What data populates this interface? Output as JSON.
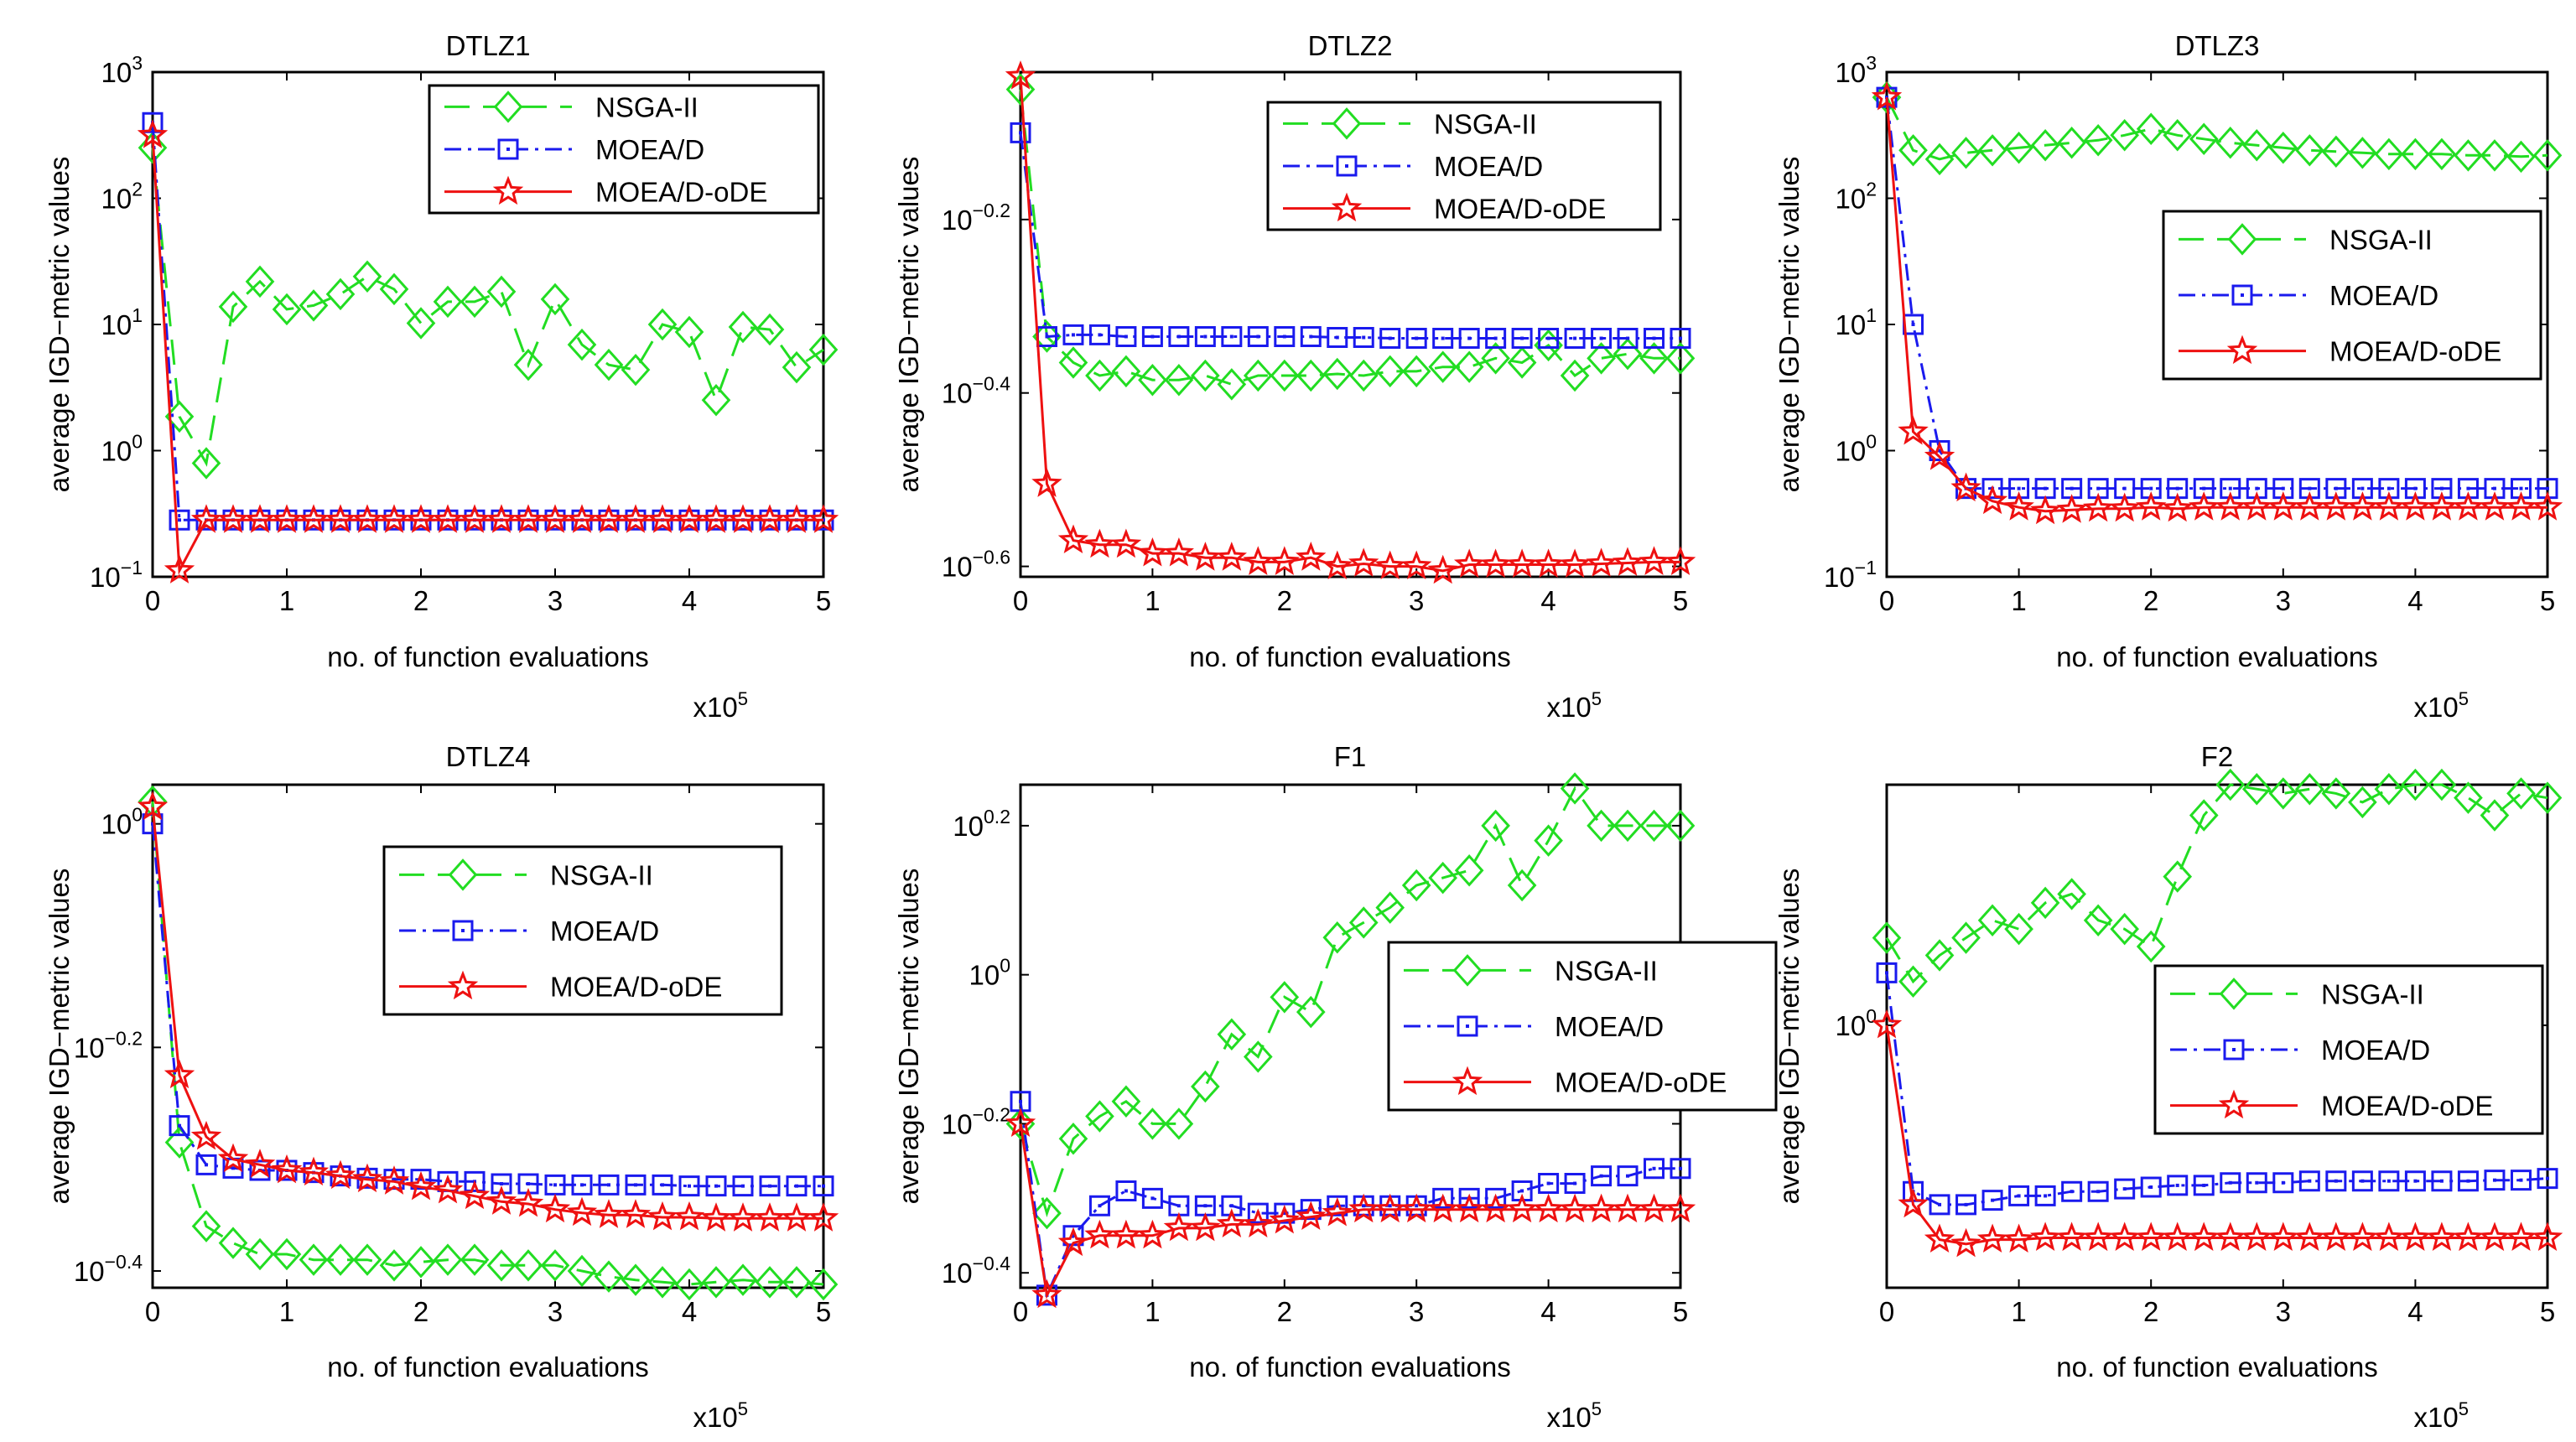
{
  "colors": {
    "nsga": "#22dd22",
    "moead": "#1a1aee",
    "moeaode": "#ee1111"
  },
  "series_names": [
    "NSGA-II",
    "MOEA/D",
    "MOEA/D-oDE"
  ],
  "chart_data": [
    {
      "type": "line",
      "title": "DTLZ1",
      "xlabel": "no. of function evaluations",
      "ylabel": "average IGD−metric values",
      "x_multiplier": "x10",
      "x_multiplier_exp": "5",
      "xlim": [
        0,
        5
      ],
      "xticks": [
        "0",
        "1",
        "2",
        "3",
        "4",
        "5"
      ],
      "yscale": "log",
      "ylim": [
        -1,
        3
      ],
      "yticks": [
        {
          "value": -1,
          "base": "10",
          "exp": "−1"
        },
        {
          "value": 0,
          "base": "10",
          "exp": "0"
        },
        {
          "value": 1,
          "base": "10",
          "exp": "1"
        },
        {
          "value": 2,
          "base": "10",
          "exp": "2"
        },
        {
          "value": 3,
          "base": "10",
          "exp": "3"
        }
      ],
      "legend": "top-right",
      "x": [
        0,
        0.2,
        0.4,
        0.6,
        0.8,
        1.0,
        1.2,
        1.4,
        1.6,
        1.8,
        2.0,
        2.2,
        2.4,
        2.6,
        2.8,
        3.0,
        3.2,
        3.4,
        3.6,
        3.8,
        4.0,
        4.2,
        4.4,
        4.6,
        4.8,
        5.0
      ],
      "series": [
        {
          "name": "NSGA-II",
          "values": [
            2.4,
            0.27,
            -0.1,
            1.14,
            1.34,
            1.12,
            1.15,
            1.24,
            1.38,
            1.28,
            1.01,
            1.18,
            1.18,
            1.26,
            0.68,
            1.2,
            0.84,
            0.68,
            0.64,
            1.0,
            0.94,
            0.4,
            0.98,
            0.96,
            0.66,
            0.8
          ]
        },
        {
          "name": "MOEA/D",
          "values": [
            2.6,
            -0.55,
            -0.55,
            -0.55,
            -0.55,
            -0.55,
            -0.55,
            -0.55,
            -0.55,
            -0.55,
            -0.55,
            -0.55,
            -0.55,
            -0.55,
            -0.55,
            -0.55,
            -0.55,
            -0.55,
            -0.55,
            -0.55,
            -0.55,
            -0.55,
            -0.55,
            -0.55,
            -0.55,
            -0.55
          ]
        },
        {
          "name": "MOEA/D-oDE",
          "values": [
            2.5,
            -0.95,
            -0.55,
            -0.55,
            -0.55,
            -0.55,
            -0.55,
            -0.55,
            -0.55,
            -0.55,
            -0.55,
            -0.55,
            -0.55,
            -0.55,
            -0.55,
            -0.55,
            -0.55,
            -0.55,
            -0.55,
            -0.55,
            -0.55,
            -0.55,
            -0.55,
            -0.55,
            -0.55,
            -0.55
          ]
        }
      ]
    },
    {
      "type": "line",
      "title": "DTLZ2",
      "xlabel": "no. of function evaluations",
      "ylabel": "average IGD−metric values",
      "x_multiplier": "x10",
      "x_multiplier_exp": "5",
      "xlim": [
        0,
        5
      ],
      "xticks": [
        "0",
        "1",
        "2",
        "3",
        "4",
        "5"
      ],
      "yscale": "log",
      "ylim": [
        -0.612,
        -0.03
      ],
      "yticks": [
        {
          "value": -0.2,
          "base": "10",
          "exp": "−0.2"
        },
        {
          "value": -0.4,
          "base": "10",
          "exp": "−0.4"
        },
        {
          "value": -0.6,
          "base": "10",
          "exp": "−0.6"
        }
      ],
      "legend": "top-right",
      "x": [
        0,
        0.2,
        0.4,
        0.6,
        0.8,
        1.0,
        1.2,
        1.4,
        1.6,
        1.8,
        2.0,
        2.2,
        2.4,
        2.6,
        2.8,
        3.0,
        3.2,
        3.4,
        3.6,
        3.8,
        4.0,
        4.2,
        4.4,
        4.6,
        4.8,
        5.0
      ],
      "series": [
        {
          "name": "NSGA-II",
          "values": [
            -0.05,
            -0.335,
            -0.365,
            -0.38,
            -0.375,
            -0.385,
            -0.385,
            -0.38,
            -0.39,
            -0.38,
            -0.38,
            -0.38,
            -0.378,
            -0.38,
            -0.375,
            -0.375,
            -0.37,
            -0.37,
            -0.36,
            -0.365,
            -0.345,
            -0.38,
            -0.36,
            -0.355,
            -0.36,
            -0.36
          ]
        },
        {
          "name": "MOEA/D",
          "values": [
            -0.1,
            -0.335,
            -0.333,
            -0.333,
            -0.335,
            -0.335,
            -0.335,
            -0.335,
            -0.335,
            -0.335,
            -0.335,
            -0.335,
            -0.336,
            -0.336,
            -0.337,
            -0.337,
            -0.337,
            -0.337,
            -0.337,
            -0.337,
            -0.337,
            -0.337,
            -0.337,
            -0.337,
            -0.337,
            -0.337
          ]
        },
        {
          "name": "MOEA/D-oDE",
          "values": [
            -0.035,
            -0.505,
            -0.57,
            -0.575,
            -0.575,
            -0.585,
            -0.585,
            -0.59,
            -0.59,
            -0.595,
            -0.595,
            -0.59,
            -0.6,
            -0.597,
            -0.6,
            -0.6,
            -0.605,
            -0.598,
            -0.598,
            -0.598,
            -0.598,
            -0.598,
            -0.597,
            -0.596,
            -0.595,
            -0.595
          ]
        }
      ]
    },
    {
      "type": "line",
      "title": "DTLZ3",
      "xlabel": "no. of function evaluations",
      "ylabel": "average IGD−metric values",
      "x_multiplier": "x10",
      "x_multiplier_exp": "5",
      "xlim": [
        0,
        5
      ],
      "xticks": [
        "0",
        "1",
        "2",
        "3",
        "4",
        "5"
      ],
      "yscale": "log",
      "ylim": [
        -1,
        3
      ],
      "yticks": [
        {
          "value": -1,
          "base": "10",
          "exp": "−1"
        },
        {
          "value": 0,
          "base": "10",
          "exp": "0"
        },
        {
          "value": 1,
          "base": "10",
          "exp": "1"
        },
        {
          "value": 2,
          "base": "10",
          "exp": "2"
        },
        {
          "value": 3,
          "base": "10",
          "exp": "3"
        }
      ],
      "legend": "right",
      "x": [
        0,
        0.2,
        0.4,
        0.6,
        0.8,
        1.0,
        1.2,
        1.4,
        1.6,
        1.8,
        2.0,
        2.2,
        2.4,
        2.6,
        2.8,
        3.0,
        3.2,
        3.4,
        3.6,
        3.8,
        4.0,
        4.2,
        4.4,
        4.6,
        4.8,
        5.0
      ],
      "series": [
        {
          "name": "NSGA-II",
          "values": [
            2.8,
            2.38,
            2.31,
            2.36,
            2.38,
            2.4,
            2.42,
            2.44,
            2.46,
            2.5,
            2.55,
            2.5,
            2.47,
            2.44,
            2.42,
            2.4,
            2.38,
            2.37,
            2.36,
            2.35,
            2.35,
            2.35,
            2.34,
            2.34,
            2.33,
            2.34
          ]
        },
        {
          "name": "MOEA/D",
          "values": [
            2.8,
            1.0,
            0.0,
            -0.3,
            -0.3,
            -0.3,
            -0.3,
            -0.3,
            -0.3,
            -0.3,
            -0.3,
            -0.3,
            -0.3,
            -0.3,
            -0.3,
            -0.3,
            -0.3,
            -0.3,
            -0.3,
            -0.3,
            -0.3,
            -0.3,
            -0.3,
            -0.3,
            -0.3,
            -0.3
          ]
        },
        {
          "name": "MOEA/D-oDE",
          "values": [
            2.8,
            0.15,
            -0.05,
            -0.3,
            -0.4,
            -0.45,
            -0.48,
            -0.47,
            -0.46,
            -0.46,
            -0.45,
            -0.46,
            -0.45,
            -0.45,
            -0.45,
            -0.45,
            -0.45,
            -0.45,
            -0.45,
            -0.45,
            -0.45,
            -0.45,
            -0.45,
            -0.45,
            -0.45,
            -0.45
          ]
        }
      ]
    },
    {
      "type": "line",
      "title": "DTLZ4",
      "xlabel": "no. of function evaluations",
      "ylabel": "average IGD−metric values",
      "x_multiplier": "x10",
      "x_multiplier_exp": "5",
      "xlim": [
        0,
        5
      ],
      "xticks": [
        "0",
        "1",
        "2",
        "3",
        "4",
        "5"
      ],
      "yscale": "log",
      "ylim": [
        -0.415,
        0.035
      ],
      "yticks": [
        {
          "value": 0,
          "base": "10",
          "exp": "0"
        },
        {
          "value": -0.2,
          "base": "10",
          "exp": "−0.2"
        },
        {
          "value": -0.4,
          "base": "10",
          "exp": "−0.4"
        }
      ],
      "legend": "right",
      "x": [
        0,
        0.2,
        0.4,
        0.6,
        0.8,
        1.0,
        1.2,
        1.4,
        1.6,
        1.8,
        2.0,
        2.2,
        2.4,
        2.6,
        2.8,
        3.0,
        3.2,
        3.4,
        3.6,
        3.8,
        4.0,
        4.2,
        4.4,
        4.6,
        4.8,
        5.0
      ],
      "series": [
        {
          "name": "NSGA-II",
          "values": [
            0.02,
            -0.285,
            -0.36,
            -0.375,
            -0.385,
            -0.385,
            -0.39,
            -0.39,
            -0.39,
            -0.395,
            -0.392,
            -0.39,
            -0.39,
            -0.395,
            -0.395,
            -0.395,
            -0.4,
            -0.405,
            -0.408,
            -0.41,
            -0.412,
            -0.41,
            -0.408,
            -0.41,
            -0.41,
            -0.412
          ]
        },
        {
          "name": "MOEA/D",
          "values": [
            0.0,
            -0.27,
            -0.305,
            -0.308,
            -0.31,
            -0.31,
            -0.312,
            -0.315,
            -0.317,
            -0.318,
            -0.318,
            -0.32,
            -0.32,
            -0.322,
            -0.322,
            -0.323,
            -0.323,
            -0.323,
            -0.323,
            -0.323,
            -0.324,
            -0.324,
            -0.324,
            -0.324,
            -0.324,
            -0.324
          ]
        },
        {
          "name": "MOEA/D-oDE",
          "values": [
            0.015,
            -0.225,
            -0.28,
            -0.3,
            -0.305,
            -0.31,
            -0.312,
            -0.315,
            -0.318,
            -0.32,
            -0.325,
            -0.328,
            -0.333,
            -0.338,
            -0.34,
            -0.345,
            -0.348,
            -0.35,
            -0.35,
            -0.352,
            -0.352,
            -0.353,
            -0.353,
            -0.353,
            -0.353,
            -0.353
          ]
        }
      ]
    },
    {
      "type": "line",
      "title": "F1",
      "xlabel": "no. of function evaluations",
      "ylabel": "average IGD−metric values",
      "x_multiplier": "x10",
      "x_multiplier_exp": "5",
      "xlim": [
        0,
        5
      ],
      "xticks": [
        "0",
        "1",
        "2",
        "3",
        "4",
        "5"
      ],
      "yscale": "log",
      "ylim": [
        -0.42,
        0.255
      ],
      "yticks": [
        {
          "value": 0.2,
          "base": "10",
          "exp": "0.2"
        },
        {
          "value": 0,
          "base": "10",
          "exp": "0"
        },
        {
          "value": -0.2,
          "base": "10",
          "exp": "−0.2"
        },
        {
          "value": -0.4,
          "base": "10",
          "exp": "−0.4"
        }
      ],
      "legend": "right",
      "x": [
        0,
        0.2,
        0.4,
        0.6,
        0.8,
        1.0,
        1.2,
        1.4,
        1.6,
        1.8,
        2.0,
        2.2,
        2.4,
        2.6,
        2.8,
        3.0,
        3.2,
        3.4,
        3.6,
        3.8,
        4.0,
        4.2,
        4.4,
        4.6,
        4.8,
        5.0
      ],
      "series": [
        {
          "name": "NSGA-II",
          "values": [
            -0.2,
            -0.32,
            -0.22,
            -0.19,
            -0.17,
            -0.2,
            -0.2,
            -0.15,
            -0.08,
            -0.11,
            -0.03,
            -0.05,
            0.05,
            0.07,
            0.09,
            0.12,
            0.13,
            0.14,
            0.2,
            0.12,
            0.18,
            0.25,
            0.2,
            0.2,
            0.2,
            0.2
          ]
        },
        {
          "name": "MOEA/D",
          "values": [
            -0.17,
            -0.43,
            -0.35,
            -0.31,
            -0.29,
            -0.3,
            -0.31,
            -0.31,
            -0.31,
            -0.32,
            -0.32,
            -0.315,
            -0.31,
            -0.31,
            -0.31,
            -0.31,
            -0.3,
            -0.3,
            -0.3,
            -0.29,
            -0.28,
            -0.28,
            -0.27,
            -0.27,
            -0.26,
            -0.26
          ]
        },
        {
          "name": "MOEA/D-oDE",
          "values": [
            -0.2,
            -0.43,
            -0.36,
            -0.35,
            -0.35,
            -0.35,
            -0.34,
            -0.34,
            -0.335,
            -0.335,
            -0.33,
            -0.325,
            -0.32,
            -0.315,
            -0.315,
            -0.315,
            -0.315,
            -0.315,
            -0.315,
            -0.315,
            -0.315,
            -0.315,
            -0.315,
            -0.315,
            -0.315,
            -0.315
          ]
        }
      ]
    },
    {
      "type": "line",
      "title": "F2",
      "xlabel": "no. of function evaluations",
      "ylabel": "average IGD−metric values",
      "x_multiplier": "x10",
      "x_multiplier_exp": "5",
      "xlim": [
        0,
        5
      ],
      "xticks": [
        "0",
        "1",
        "2",
        "3",
        "4",
        "5"
      ],
      "yscale": "log",
      "ylim": [
        -0.3,
        0.275
      ],
      "yticks": [
        {
          "value": 0,
          "base": "10",
          "exp": "0"
        }
      ],
      "legend": "right",
      "x": [
        0,
        0.2,
        0.4,
        0.6,
        0.8,
        1.0,
        1.2,
        1.4,
        1.6,
        1.8,
        2.0,
        2.2,
        2.4,
        2.6,
        2.8,
        3.0,
        3.2,
        3.4,
        3.6,
        3.8,
        4.0,
        4.2,
        4.4,
        4.6,
        4.8,
        5.0
      ],
      "series": [
        {
          "name": "NSGA-II",
          "values": [
            0.1,
            0.05,
            0.08,
            0.1,
            0.12,
            0.11,
            0.14,
            0.15,
            0.12,
            0.11,
            0.09,
            0.17,
            0.24,
            0.275,
            0.27,
            0.265,
            0.27,
            0.265,
            0.255,
            0.27,
            0.275,
            0.275,
            0.26,
            0.24,
            0.265,
            0.26
          ]
        },
        {
          "name": "MOEA/D",
          "values": [
            0.06,
            -0.19,
            -0.205,
            -0.205,
            -0.2,
            -0.195,
            -0.195,
            -0.19,
            -0.19,
            -0.187,
            -0.185,
            -0.183,
            -0.183,
            -0.18,
            -0.18,
            -0.18,
            -0.178,
            -0.178,
            -0.178,
            -0.178,
            -0.178,
            -0.178,
            -0.178,
            -0.177,
            -0.177,
            -0.175
          ]
        },
        {
          "name": "MOEA/D-oDE",
          "values": [
            0.0,
            -0.205,
            -0.245,
            -0.25,
            -0.245,
            -0.245,
            -0.243,
            -0.243,
            -0.243,
            -0.243,
            -0.243,
            -0.243,
            -0.243,
            -0.243,
            -0.243,
            -0.243,
            -0.243,
            -0.243,
            -0.243,
            -0.243,
            -0.243,
            -0.243,
            -0.243,
            -0.243,
            -0.243,
            -0.243
          ]
        }
      ]
    }
  ]
}
